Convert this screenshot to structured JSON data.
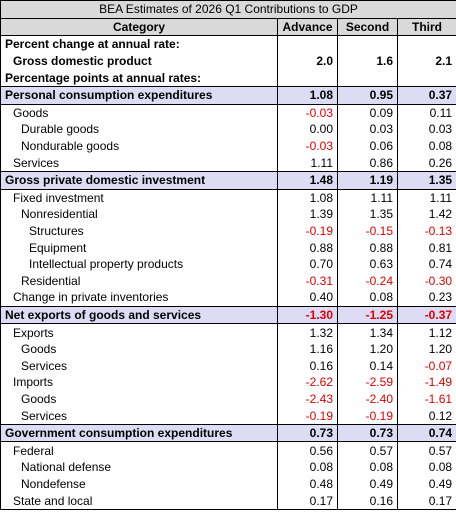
{
  "table": {
    "title": "BEA Estimates of 2026 Q1 Contributions to GDP",
    "columns": [
      "Category",
      "Advance",
      "Second",
      "Third"
    ],
    "rows": [
      {
        "label": "Percent change at annual rate:",
        "level": 0,
        "bold": true,
        "values": []
      },
      {
        "label": "Gross domestic product",
        "level": 1,
        "bold": true,
        "values": [
          "2.0",
          "1.6",
          "2.1"
        ]
      },
      {
        "label": "Percentage points at annual rates:",
        "level": 0,
        "bold": true,
        "values": []
      },
      {
        "label": "Personal consumption expenditures",
        "level": 0,
        "bold": true,
        "highlight": true,
        "values": [
          "1.08",
          "0.95",
          "0.37"
        ]
      },
      {
        "label": "Goods",
        "level": 1,
        "values": [
          "-0.03",
          "0.09",
          "0.11"
        ]
      },
      {
        "label": "Durable goods",
        "level": 2,
        "values": [
          "0.00",
          "0.03",
          "0.03"
        ]
      },
      {
        "label": "Nondurable goods",
        "level": 2,
        "values": [
          "-0.03",
          "0.06",
          "0.08"
        ]
      },
      {
        "label": "Services",
        "level": 1,
        "values": [
          "1.11",
          "0.86",
          "0.26"
        ]
      },
      {
        "label": "Gross private domestic investment",
        "level": 0,
        "bold": true,
        "highlight": true,
        "values": [
          "1.48",
          "1.19",
          "1.35"
        ]
      },
      {
        "label": "Fixed investment",
        "level": 1,
        "values": [
          "1.08",
          "1.11",
          "1.11"
        ]
      },
      {
        "label": "Nonresidential",
        "level": 2,
        "values": [
          "1.39",
          "1.35",
          "1.42"
        ]
      },
      {
        "label": "Structures",
        "level": 3,
        "values": [
          "-0.19",
          "-0.15",
          "-0.13"
        ]
      },
      {
        "label": "Equipment",
        "level": 3,
        "values": [
          "0.88",
          "0.88",
          "0.81"
        ]
      },
      {
        "label": "Intellectual property products",
        "level": 3,
        "values": [
          "0.70",
          "0.63",
          "0.74"
        ]
      },
      {
        "label": "Residential",
        "level": 2,
        "values": [
          "-0.31",
          "-0.24",
          "-0.30"
        ]
      },
      {
        "label": "Change in private inventories",
        "level": 1,
        "values": [
          "0.40",
          "0.08",
          "0.23"
        ]
      },
      {
        "label": "Net exports of goods and services",
        "level": 0,
        "bold": true,
        "highlight": true,
        "values": [
          "-1.30",
          "-1.25",
          "-0.37"
        ]
      },
      {
        "label": "Exports",
        "level": 1,
        "values": [
          "1.32",
          "1.34",
          "1.12"
        ]
      },
      {
        "label": "Goods",
        "level": 2,
        "values": [
          "1.16",
          "1.20",
          "1.20"
        ]
      },
      {
        "label": "Services",
        "level": 2,
        "values": [
          "0.16",
          "0.14",
          "-0.07"
        ]
      },
      {
        "label": "Imports",
        "level": 1,
        "values": [
          "-2.62",
          "-2.59",
          "-1.49"
        ]
      },
      {
        "label": "Goods",
        "level": 2,
        "values": [
          "-2.43",
          "-2.40",
          "-1.61"
        ]
      },
      {
        "label": "Services",
        "level": 2,
        "values": [
          "-0.19",
          "-0.19",
          "0.12"
        ]
      },
      {
        "label": "Government consumption expenditures",
        "level": 0,
        "bold": true,
        "highlight": true,
        "values": [
          "0.73",
          "0.73",
          "0.74"
        ]
      },
      {
        "label": "Federal",
        "level": 1,
        "values": [
          "0.56",
          "0.57",
          "0.57"
        ]
      },
      {
        "label": "National defense",
        "level": 2,
        "values": [
          "0.08",
          "0.08",
          "0.08"
        ]
      },
      {
        "label": "Nondefense",
        "level": 2,
        "values": [
          "0.48",
          "0.49",
          "0.49"
        ]
      },
      {
        "label": "State and local",
        "level": 1,
        "values": [
          "0.17",
          "0.16",
          "0.17"
        ]
      }
    ]
  }
}
